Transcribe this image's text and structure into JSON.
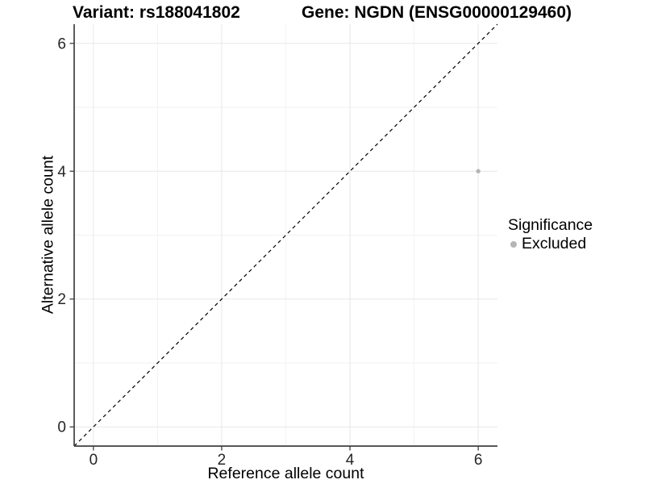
{
  "chart_data": {
    "type": "scatter",
    "titles": {
      "variant": "Variant: rs188041802",
      "gene": "Gene: NGDN (ENSG00000129460)"
    },
    "xlabel": "Reference allele count",
    "ylabel": "Alternative allele count",
    "xlim": [
      -0.3,
      6.3
    ],
    "ylim": [
      -0.3,
      6.3
    ],
    "xticks": [
      0,
      2,
      4,
      6
    ],
    "yticks": [
      0,
      2,
      4,
      6
    ],
    "xticks_minor": [
      1,
      3,
      5
    ],
    "yticks_minor": [
      1,
      3,
      5
    ],
    "grid": "major and minor gridlines, white background",
    "identity_line": {
      "style": "dashed",
      "slope": 1,
      "intercept": 0,
      "color": "#000000"
    },
    "points": [
      {
        "x": 6,
        "y": 4,
        "series": "Excluded"
      }
    ],
    "legend": {
      "title": "Significance",
      "position": "right",
      "items": [
        {
          "label": "Excluded",
          "color": "#b5b5b5"
        }
      ]
    },
    "colors": {
      "background": "#ffffff",
      "grid_major": "#e7e7e7",
      "grid_minor": "#f2f2f2",
      "axis_line": "#3f3f3f",
      "tick_text": "#262626",
      "title_text": "#000000"
    }
  }
}
